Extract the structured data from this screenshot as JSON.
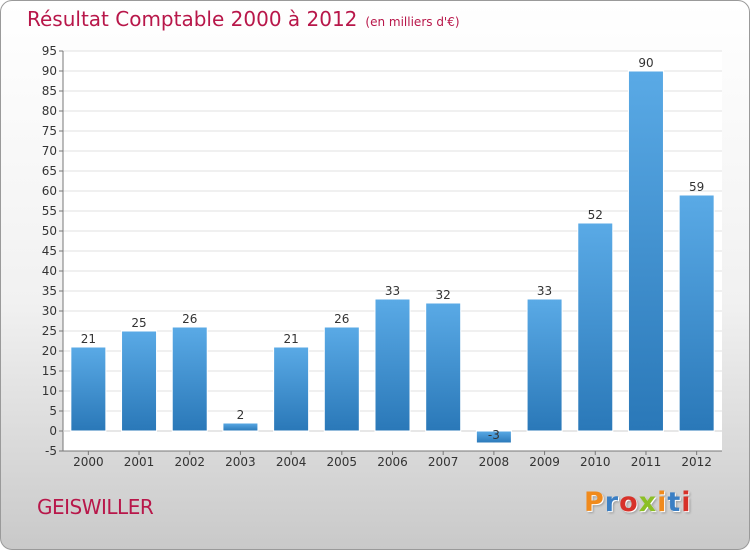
{
  "header": {
    "title": "Résultat Comptable 2000 à 2012",
    "subtitle": "(en milliers d'€)"
  },
  "footer": {
    "place": "GEISWILLER",
    "logo": "Proxiti",
    "logo_colors": [
      "#f08a1c",
      "#3b7fc4",
      "#d7322a",
      "#8cbf26",
      "#f08a1c",
      "#3b7fc4",
      "#d7322a"
    ]
  },
  "colors": {
    "bar_top": "#5aaae6",
    "bar_bottom": "#2a78b8",
    "grid": "#e2e2e2",
    "plot_bg": "#ffffff",
    "text": "#333333",
    "accent": "#b8174a"
  },
  "chart_data": {
    "type": "bar",
    "title": "Résultat Comptable 2000 à 2012",
    "xlabel": "",
    "ylabel": "",
    "categories": [
      "2000",
      "2001",
      "2002",
      "2003",
      "2004",
      "2005",
      "2006",
      "2007",
      "2008",
      "2009",
      "2010",
      "2011",
      "2012"
    ],
    "values": [
      21,
      25,
      26,
      2,
      21,
      26,
      33,
      32,
      -3,
      33,
      52,
      90,
      59
    ],
    "labels": [
      "21",
      "25",
      "26",
      "2",
      "21",
      "26",
      "33",
      "32",
      "-3",
      "33",
      "52",
      "90",
      "59"
    ],
    "ylim": [
      -5,
      95
    ],
    "yticks": [
      -5,
      0,
      5,
      10,
      15,
      20,
      25,
      30,
      35,
      40,
      45,
      50,
      55,
      60,
      65,
      70,
      75,
      80,
      85,
      90,
      95
    ],
    "grid": true,
    "legend": "none"
  }
}
